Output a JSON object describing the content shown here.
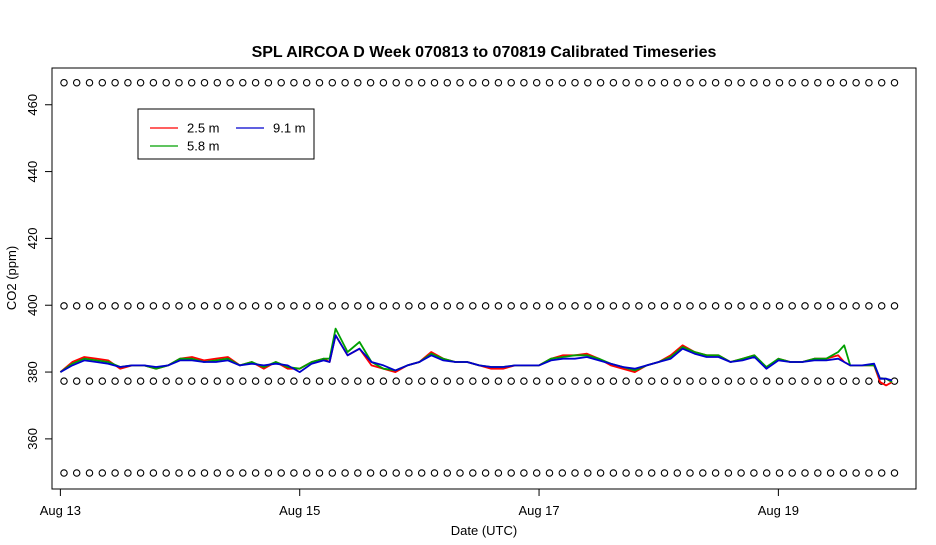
{
  "chart_data": {
    "type": "line",
    "title": "SPL AIRCOA D  Week 070813 to 070819  Calibrated Timeseries",
    "xlabel": "Date (UTC)",
    "ylabel": "CO2 (ppm)",
    "x_unit": "days",
    "xlim": [
      12.93,
      20.15
    ],
    "ylim": [
      345,
      471
    ],
    "x_ticks": [
      13,
      15,
      17,
      19
    ],
    "x_tick_labels": [
      "Aug 13",
      "Aug 15",
      "Aug 17",
      "Aug 19"
    ],
    "y_ticks": [
      360,
      380,
      400,
      420,
      440,
      460
    ],
    "y_tick_labels": [
      "360",
      "380",
      "400",
      "420",
      "440",
      "460"
    ],
    "legend_position": "top-left",
    "legend": [
      {
        "label": "2.5 m",
        "color": "#ff0000"
      },
      {
        "label": "9.1 m",
        "color": "#0000cd"
      },
      {
        "label": "5.8 m",
        "color": "#00a000"
      }
    ],
    "series": [
      {
        "name": "2.5 m",
        "color": "#ff0000",
        "x": [
          13.0,
          13.1,
          13.2,
          13.3,
          13.4,
          13.5,
          13.6,
          13.7,
          13.8,
          13.9,
          14.0,
          14.1,
          14.2,
          14.3,
          14.4,
          14.5,
          14.6,
          14.7,
          14.8,
          14.9,
          15.0,
          15.1,
          15.2,
          15.25,
          15.3,
          15.4,
          15.5,
          15.6,
          15.7,
          15.8,
          15.9,
          16.0,
          16.1,
          16.2,
          16.3,
          16.4,
          16.5,
          16.6,
          16.7,
          16.8,
          16.9,
          17.0,
          17.1,
          17.2,
          17.3,
          17.4,
          17.5,
          17.6,
          17.7,
          17.8,
          17.9,
          18.0,
          18.1,
          18.2,
          18.3,
          18.4,
          18.5,
          18.6,
          18.7,
          18.8,
          18.9,
          19.0,
          19.1,
          19.2,
          19.3,
          19.4,
          19.5,
          19.55,
          19.6,
          19.7,
          19.8,
          19.85,
          19.9,
          19.95
        ],
        "y": [
          380,
          383,
          384.5,
          384,
          383.5,
          381,
          382,
          382,
          381,
          382,
          384,
          384.5,
          383.5,
          384,
          384.5,
          382,
          383,
          381,
          383,
          381,
          381,
          383,
          384,
          383,
          391,
          385,
          387,
          382,
          381,
          380,
          382,
          383,
          386,
          384,
          383,
          383,
          382,
          381,
          381,
          382,
          382,
          382,
          384,
          385,
          385,
          385.5,
          384,
          382,
          381,
          380,
          382,
          383,
          385,
          388,
          386,
          385,
          385,
          383,
          384,
          385,
          381,
          384,
          383,
          383,
          384,
          384,
          385,
          383,
          382,
          382,
          382,
          377,
          376,
          377
        ]
      },
      {
        "name": "5.8 m",
        "color": "#00a000",
        "x": [
          13.0,
          13.1,
          13.2,
          13.3,
          13.4,
          13.5,
          13.6,
          13.7,
          13.8,
          13.9,
          14.0,
          14.1,
          14.2,
          14.3,
          14.4,
          14.5,
          14.6,
          14.7,
          14.8,
          14.9,
          15.0,
          15.1,
          15.2,
          15.25,
          15.3,
          15.4,
          15.5,
          15.6,
          15.7,
          15.8,
          15.9,
          16.0,
          16.1,
          16.2,
          16.3,
          16.4,
          16.5,
          16.6,
          16.7,
          16.8,
          16.9,
          17.0,
          17.1,
          17.2,
          17.3,
          17.4,
          17.5,
          17.6,
          17.7,
          17.8,
          17.9,
          18.0,
          18.1,
          18.2,
          18.3,
          18.4,
          18.5,
          18.6,
          18.7,
          18.8,
          18.9,
          19.0,
          19.1,
          19.2,
          19.3,
          19.4,
          19.5,
          19.55,
          19.6,
          19.7,
          19.8,
          19.85,
          19.9,
          19.95
        ],
        "y": [
          380,
          382.5,
          384,
          383.5,
          383,
          381.5,
          382,
          382,
          381,
          382,
          384,
          384,
          383,
          383.5,
          384,
          382,
          383,
          381.5,
          383,
          381.5,
          381,
          383,
          384,
          384,
          393,
          386,
          389,
          383,
          381,
          380.5,
          382,
          383,
          385.5,
          384,
          383,
          383,
          382,
          381.5,
          381.5,
          382,
          382,
          382,
          384,
          384.5,
          385,
          385,
          384,
          382.5,
          381.5,
          380.5,
          382,
          383,
          384.5,
          387.5,
          386,
          385,
          385,
          383,
          384,
          385,
          381.5,
          384,
          383,
          383,
          384,
          384,
          386,
          388,
          382,
          382,
          382,
          378,
          378,
          377
        ]
      },
      {
        "name": "9.1 m",
        "color": "#0000cd",
        "x": [
          13.0,
          13.1,
          13.2,
          13.3,
          13.4,
          13.5,
          13.6,
          13.7,
          13.8,
          13.9,
          14.0,
          14.1,
          14.2,
          14.3,
          14.4,
          14.5,
          14.6,
          14.7,
          14.8,
          14.9,
          15.0,
          15.1,
          15.2,
          15.25,
          15.3,
          15.4,
          15.5,
          15.6,
          15.7,
          15.8,
          15.9,
          16.0,
          16.1,
          16.2,
          16.3,
          16.4,
          16.5,
          16.6,
          16.7,
          16.8,
          16.9,
          17.0,
          17.1,
          17.2,
          17.3,
          17.4,
          17.5,
          17.6,
          17.7,
          17.8,
          17.9,
          18.0,
          18.1,
          18.2,
          18.3,
          18.4,
          18.5,
          18.6,
          18.7,
          18.8,
          18.9,
          19.0,
          19.1,
          19.2,
          19.3,
          19.4,
          19.5,
          19.55,
          19.6,
          19.7,
          19.8,
          19.85,
          19.9,
          19.95
        ],
        "y": [
          380,
          382,
          383.5,
          383,
          382.5,
          381.5,
          382,
          382,
          381.5,
          382,
          383.5,
          383.5,
          383,
          383,
          383.5,
          382,
          382.5,
          382,
          382.5,
          382,
          380,
          382.5,
          383.5,
          383,
          391,
          385,
          387,
          383,
          382,
          380.5,
          382,
          383,
          385,
          383.5,
          383,
          383,
          382,
          381.5,
          381.5,
          382,
          382,
          382,
          383.5,
          384,
          384,
          384.5,
          383.5,
          382.5,
          381.5,
          381,
          382,
          383,
          384,
          387,
          385.5,
          384.5,
          384.5,
          383,
          383.5,
          384.5,
          381,
          383.5,
          383,
          383,
          383.5,
          383.5,
          384,
          383,
          382,
          382,
          382.5,
          378,
          378,
          377.5
        ]
      }
    ],
    "calibration_markers": {
      "marker": "open circle",
      "levels": [
        349.8,
        377.3,
        399.8,
        466.6
      ],
      "x_start": 13.03,
      "x_end": 19.97,
      "count_per_level": 66
    }
  }
}
